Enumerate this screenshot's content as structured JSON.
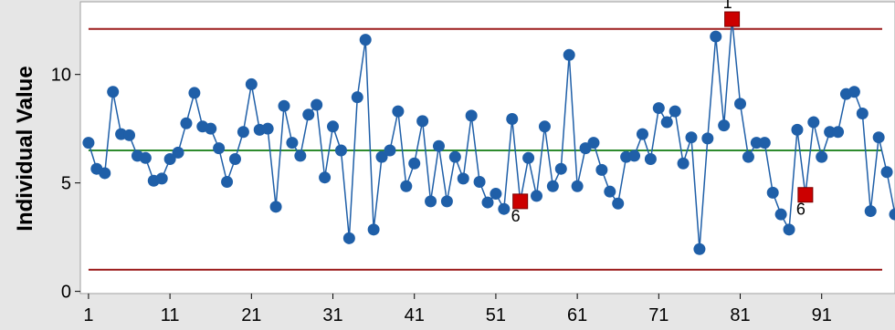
{
  "chart_data": {
    "type": "line",
    "title": "",
    "xlabel": "",
    "ylabel": "Individual Value",
    "xlim": [
      0,
      100
    ],
    "ylim": [
      -0.1,
      13.35
    ],
    "x_ticks": [
      1,
      11,
      21,
      31,
      41,
      51,
      61,
      71,
      81,
      91
    ],
    "y_ticks": [
      0,
      5,
      10
    ],
    "grid": false,
    "colors": {
      "series": "#1f5fa8",
      "center_line": "#2e8b2e",
      "control_limits": "#9c1c1c",
      "flagged": "#cc0000",
      "plot_background": "#ffffff",
      "frame_background": "#e6e6e6"
    },
    "center_line": 6.5,
    "ucl": 12.1,
    "lcl": 1.0,
    "series": [
      {
        "values": [
          6.85,
          5.65,
          5.45,
          9.2,
          7.25,
          7.2,
          6.25,
          6.15,
          5.1,
          5.2,
          6.1,
          6.4,
          7.75,
          9.15,
          7.6,
          7.5,
          6.6,
          5.05,
          6.1,
          7.35,
          9.55,
          7.45,
          7.5,
          3.9,
          8.55,
          6.85,
          6.25,
          8.15,
          8.6,
          5.25,
          7.6,
          6.5,
          2.45,
          8.95,
          11.6,
          2.85,
          6.2,
          6.5,
          8.3,
          4.85,
          5.9,
          7.85,
          4.15,
          6.7,
          4.15,
          6.2,
          5.2,
          8.1,
          5.05,
          4.1,
          4.5,
          3.8,
          7.95,
          4.15,
          6.15,
          4.4,
          7.6,
          4.85,
          5.65,
          10.9,
          4.85,
          6.6,
          6.85,
          5.6,
          4.6,
          4.05,
          6.2,
          6.25,
          7.25,
          6.1,
          8.45,
          7.8,
          8.3,
          5.9,
          7.1,
          1.95,
          7.05,
          11.75,
          7.65,
          12.55,
          8.65,
          6.2,
          6.85,
          6.85,
          4.55,
          3.55,
          2.85,
          7.45,
          4.45,
          7.8,
          6.2,
          7.35,
          7.35,
          9.1,
          9.2,
          8.2,
          3.7,
          7.1,
          5.5,
          3.55
        ]
      }
    ],
    "flagged_points": [
      {
        "x": 54,
        "label": "6"
      },
      {
        "x": 80,
        "label": "1"
      },
      {
        "x": 89,
        "label": "6"
      }
    ]
  }
}
